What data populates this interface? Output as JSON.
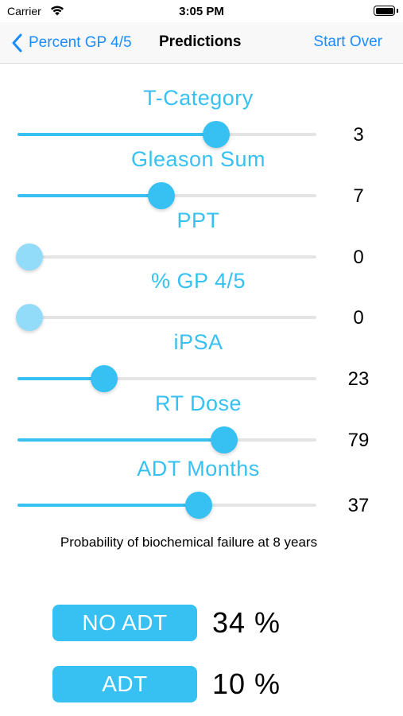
{
  "status_bar": {
    "carrier": "Carrier",
    "time": "3:05 PM",
    "wifi_icon": "wifi-icon",
    "battery_icon": "battery-icon",
    "battery_level": 1.0
  },
  "nav": {
    "back_label": "Percent GP 4/5",
    "title": "Predictions",
    "start_over_label": "Start Over"
  },
  "colors": {
    "accent": "#36c1f2",
    "link": "#1a8cff",
    "thumb_at_min": "#93dcf9",
    "track": "#e4e4e4"
  },
  "sliders": [
    {
      "label": "T-Category",
      "value": "3",
      "position": 0.65
    },
    {
      "label": "Gleason Sum",
      "value": "7",
      "position": 0.46
    },
    {
      "label": "PPT",
      "value": "0",
      "position": 0.0
    },
    {
      "label": "% GP 4/5",
      "value": "0",
      "position": 0.0
    },
    {
      "label": "iPSA",
      "value": "23",
      "position": 0.26
    },
    {
      "label": "RT Dose",
      "value": "79",
      "position": 0.68
    },
    {
      "label": "ADT Months",
      "value": "37",
      "position": 0.59
    }
  ],
  "caption": "Probability of biochemical failure at 8 years",
  "results": [
    {
      "label": "NO ADT",
      "value": "34 %"
    },
    {
      "label": "ADT",
      "value": "10 %"
    }
  ]
}
